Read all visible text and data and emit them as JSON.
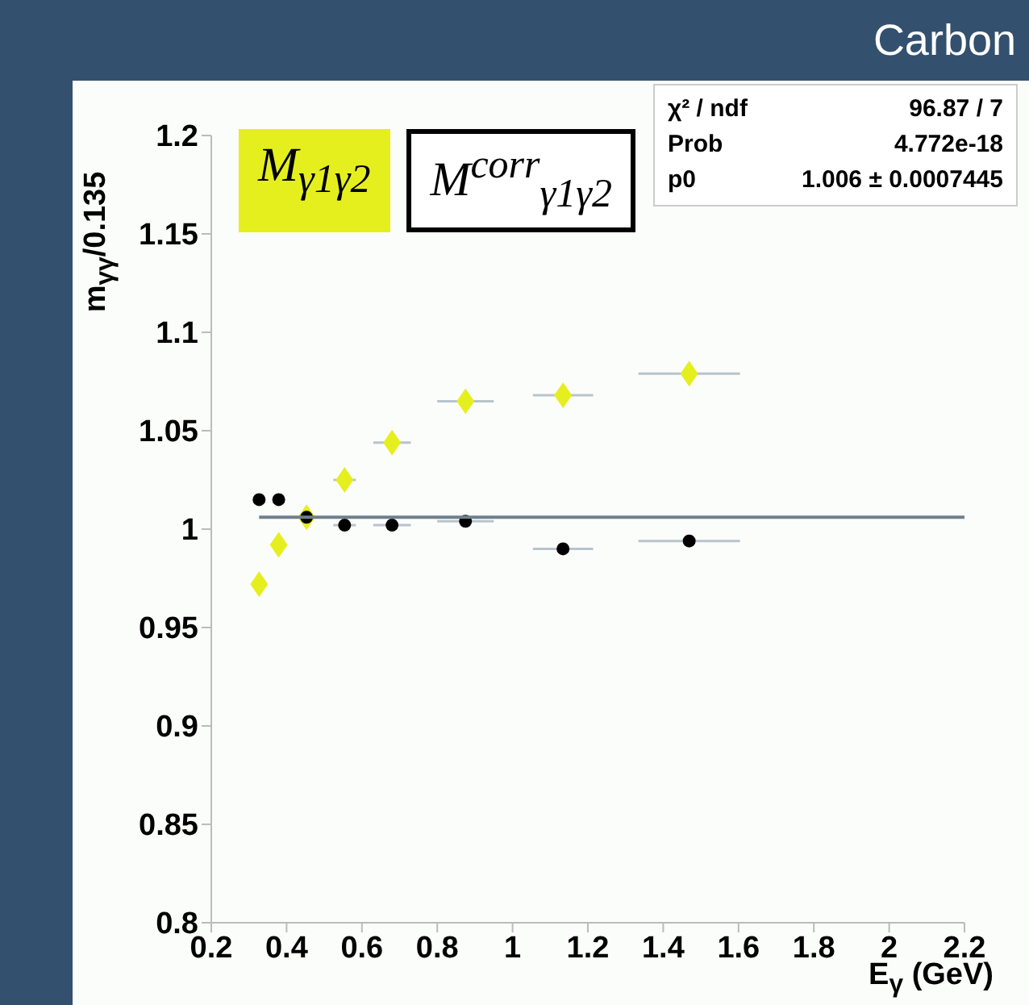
{
  "chart_data": {
    "type": "scatter",
    "title": "Carbon",
    "xlabel": "E$_{γ}$ (GeV)",
    "ylabel": "m$_{γγ}$/0.135",
    "xlim": [
      0.2,
      2.2
    ],
    "xticks": [
      0.2,
      0.4,
      0.6,
      0.8,
      1,
      1.2,
      1.4,
      1.6,
      1.8,
      2,
      2.2
    ],
    "ylim": [
      0.8,
      1.2
    ],
    "yticks": [
      0.8,
      0.85,
      0.9,
      0.95,
      1,
      1.05,
      1.1,
      1.15,
      1.2
    ],
    "grid": false,
    "legend": "top left",
    "annotations": [
      "χ² / ndf",
      "96.87 / 7",
      "Prob",
      "4.772e-18",
      "p0",
      "1.006 ± 0.0007445"
    ],
    "series": [
      {
        "name": "M$_{γ1γ2}$",
        "color": "#e6ef1e",
        "marker": "diamond",
        "x": [
          0.327,
          0.379,
          0.453,
          0.554,
          0.68,
          0.875,
          1.134,
          1.469
        ],
        "values": [
          0.972,
          0.992,
          1.006,
          1.025,
          1.044,
          1.065,
          1.068,
          1.079
        ],
        "xerrors": [
          null,
          null,
          0.025,
          0.03,
          0.05,
          0.075,
          0.08,
          0.135
        ]
      },
      {
        "name": "M$^{corr}$$_{γ1γ2}$",
        "color": "#000000",
        "marker": "circle",
        "x": [
          0.327,
          0.379,
          0.453,
          0.554,
          0.68,
          0.875,
          1.134,
          1.469
        ],
        "values": [
          1.015,
          1.015,
          1.006,
          1.002,
          1.002,
          1.004,
          0.99,
          0.994
        ],
        "xerrors": [
          null,
          null,
          0.025,
          0.03,
          0.05,
          0.075,
          0.08,
          0.135
        ]
      },
      {
        "type": "line",
        "color": "#6f7f8c",
        "marker": "none",
        "x": [
          0.327,
          2.2
        ],
        "values": [
          1.006,
          1.006
        ]
      }
    ]
  }
}
